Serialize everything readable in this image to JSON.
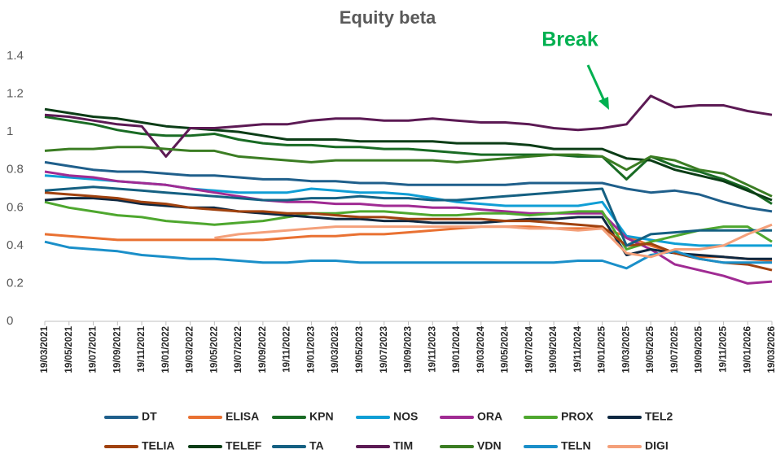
{
  "chart_data": {
    "type": "line",
    "title": "Equity beta",
    "annotation": "Break",
    "categories": [
      "19/03/2021",
      "19/05/2021",
      "19/07/2021",
      "19/09/2021",
      "19/11/2021",
      "19/01/2022",
      "19/03/2022",
      "19/05/2022",
      "19/07/2022",
      "19/09/2022",
      "19/11/2022",
      "19/01/2023",
      "19/03/2023",
      "19/05/2023",
      "19/07/2023",
      "19/09/2023",
      "19/11/2023",
      "19/01/2024",
      "19/03/2024",
      "19/05/2024",
      "19/07/2024",
      "19/09/2024",
      "19/11/2024",
      "19/01/2025",
      "19/03/2025",
      "19/05/2025",
      "19/07/2025",
      "19/09/2025",
      "19/11/2025",
      "19/01/2026",
      "19/03/2026"
    ],
    "ylim": [
      0,
      1.4
    ],
    "yticks": [
      0,
      0.2,
      0.4,
      0.6,
      0.8,
      1,
      1.2,
      1.4
    ],
    "grid": false,
    "series": [
      {
        "name": "DT",
        "color": "#1f5f8b",
        "values": [
          0.84,
          0.82,
          0.8,
          0.79,
          0.79,
          0.78,
          0.77,
          0.77,
          0.76,
          0.75,
          0.75,
          0.74,
          0.74,
          0.73,
          0.73,
          0.72,
          0.72,
          0.72,
          0.72,
          0.72,
          0.73,
          0.73,
          0.73,
          0.73,
          0.7,
          0.68,
          0.69,
          0.67,
          0.63,
          0.6,
          0.58
        ]
      },
      {
        "name": "ELISA",
        "color": "#e97132",
        "values": [
          0.46,
          0.45,
          0.44,
          0.43,
          0.43,
          0.43,
          0.43,
          0.43,
          0.43,
          0.43,
          0.44,
          0.45,
          0.45,
          0.46,
          0.46,
          0.47,
          0.48,
          0.49,
          0.5,
          0.5,
          0.5,
          0.49,
          0.49,
          0.49,
          0.45,
          0.4,
          0.36,
          0.34,
          0.34,
          0.33,
          0.32
        ]
      },
      {
        "name": "KPN",
        "color": "#196b24",
        "values": [
          1.08,
          1.06,
          1.04,
          1.01,
          0.99,
          0.98,
          0.98,
          0.99,
          0.96,
          0.94,
          0.93,
          0.93,
          0.92,
          0.92,
          0.91,
          0.91,
          0.9,
          0.89,
          0.88,
          0.88,
          0.88,
          0.88,
          0.87,
          0.87,
          0.75,
          0.87,
          0.82,
          0.79,
          0.75,
          0.7,
          0.62
        ]
      },
      {
        "name": "NOS",
        "color": "#0f9ed5",
        "values": [
          0.77,
          0.76,
          0.75,
          0.74,
          0.73,
          0.72,
          0.7,
          0.69,
          0.68,
          0.68,
          0.68,
          0.7,
          0.69,
          0.68,
          0.68,
          0.67,
          0.65,
          0.63,
          0.62,
          0.61,
          0.61,
          0.61,
          0.61,
          0.63,
          0.45,
          0.43,
          0.41,
          0.4,
          0.4,
          0.4,
          0.4
        ]
      },
      {
        "name": "ORA",
        "color": "#a02b93",
        "values": [
          0.79,
          0.77,
          0.76,
          0.74,
          0.73,
          0.72,
          0.7,
          0.68,
          0.66,
          0.64,
          0.63,
          0.63,
          0.62,
          0.62,
          0.61,
          0.61,
          0.6,
          0.6,
          0.59,
          0.58,
          0.57,
          0.57,
          0.57,
          0.57,
          0.44,
          0.38,
          0.3,
          0.27,
          0.24,
          0.2,
          0.21
        ]
      },
      {
        "name": "PROX",
        "color": "#4ea72e",
        "values": [
          0.63,
          0.6,
          0.58,
          0.56,
          0.55,
          0.53,
          0.52,
          0.51,
          0.52,
          0.53,
          0.55,
          0.57,
          0.57,
          0.58,
          0.58,
          0.57,
          0.56,
          0.56,
          0.57,
          0.57,
          0.56,
          0.57,
          0.58,
          0.58,
          0.38,
          0.42,
          0.45,
          0.48,
          0.5,
          0.5,
          0.42
        ]
      },
      {
        "name": "TEL2",
        "color": "#0e2841",
        "values": [
          0.64,
          0.65,
          0.65,
          0.64,
          0.62,
          0.61,
          0.6,
          0.6,
          0.58,
          0.57,
          0.56,
          0.55,
          0.54,
          0.54,
          0.53,
          0.53,
          0.52,
          0.52,
          0.52,
          0.53,
          0.54,
          0.54,
          0.55,
          0.55,
          0.35,
          0.38,
          0.36,
          0.35,
          0.34,
          0.33,
          0.33
        ]
      },
      {
        "name": "TELIA",
        "color": "#a0420f",
        "values": [
          0.68,
          0.67,
          0.66,
          0.65,
          0.63,
          0.62,
          0.6,
          0.59,
          0.58,
          0.58,
          0.57,
          0.57,
          0.56,
          0.55,
          0.55,
          0.54,
          0.54,
          0.54,
          0.54,
          0.53,
          0.53,
          0.52,
          0.51,
          0.5,
          0.4,
          0.41,
          0.36,
          0.33,
          0.31,
          0.3,
          0.27
        ]
      },
      {
        "name": "TELEF",
        "color": "#0b3d16",
        "values": [
          1.12,
          1.1,
          1.08,
          1.07,
          1.05,
          1.03,
          1.02,
          1.01,
          1.0,
          0.98,
          0.96,
          0.96,
          0.96,
          0.95,
          0.95,
          0.95,
          0.95,
          0.94,
          0.94,
          0.94,
          0.93,
          0.91,
          0.91,
          0.91,
          0.86,
          0.85,
          0.8,
          0.77,
          0.74,
          0.69,
          0.64
        ]
      },
      {
        "name": "TA",
        "color": "#156082",
        "values": [
          0.69,
          0.7,
          0.71,
          0.7,
          0.69,
          0.68,
          0.67,
          0.66,
          0.65,
          0.64,
          0.64,
          0.65,
          0.65,
          0.66,
          0.65,
          0.65,
          0.64,
          0.64,
          0.65,
          0.66,
          0.67,
          0.68,
          0.69,
          0.7,
          0.4,
          0.46,
          0.47,
          0.48,
          0.48,
          0.48,
          0.48
        ]
      },
      {
        "name": "TIM",
        "color": "#5c1a54",
        "values": [
          1.09,
          1.08,
          1.06,
          1.04,
          1.03,
          0.87,
          1.02,
          1.02,
          1.03,
          1.04,
          1.04,
          1.06,
          1.07,
          1.07,
          1.06,
          1.06,
          1.07,
          1.06,
          1.05,
          1.05,
          1.04,
          1.02,
          1.01,
          1.02,
          1.04,
          1.19,
          1.13,
          1.14,
          1.14,
          1.11,
          1.09
        ]
      },
      {
        "name": "VDN",
        "color": "#3b7d23",
        "values": [
          0.9,
          0.91,
          0.91,
          0.92,
          0.92,
          0.91,
          0.9,
          0.9,
          0.87,
          0.86,
          0.85,
          0.84,
          0.85,
          0.85,
          0.85,
          0.85,
          0.85,
          0.84,
          0.85,
          0.86,
          0.87,
          0.88,
          0.88,
          0.87,
          0.8,
          0.87,
          0.85,
          0.8,
          0.78,
          0.72,
          0.66
        ]
      },
      {
        "name": "TELN",
        "color": "#1a8fc9",
        "values": [
          0.42,
          0.39,
          0.38,
          0.37,
          0.35,
          0.34,
          0.33,
          0.33,
          0.32,
          0.31,
          0.31,
          0.32,
          0.32,
          0.31,
          0.31,
          0.31,
          0.31,
          0.31,
          0.31,
          0.31,
          0.31,
          0.31,
          0.32,
          0.32,
          0.28,
          0.35,
          0.37,
          0.33,
          0.31,
          0.31,
          0.31
        ]
      },
      {
        "name": "DIGI",
        "color": "#f4a07a",
        "values": [
          null,
          null,
          null,
          null,
          null,
          null,
          null,
          0.44,
          0.46,
          0.47,
          0.48,
          0.49,
          0.5,
          0.5,
          0.5,
          0.5,
          0.5,
          0.5,
          0.5,
          0.5,
          0.49,
          0.49,
          0.48,
          0.49,
          0.36,
          0.34,
          0.38,
          0.38,
          0.4,
          0.46,
          0.51
        ]
      }
    ]
  }
}
